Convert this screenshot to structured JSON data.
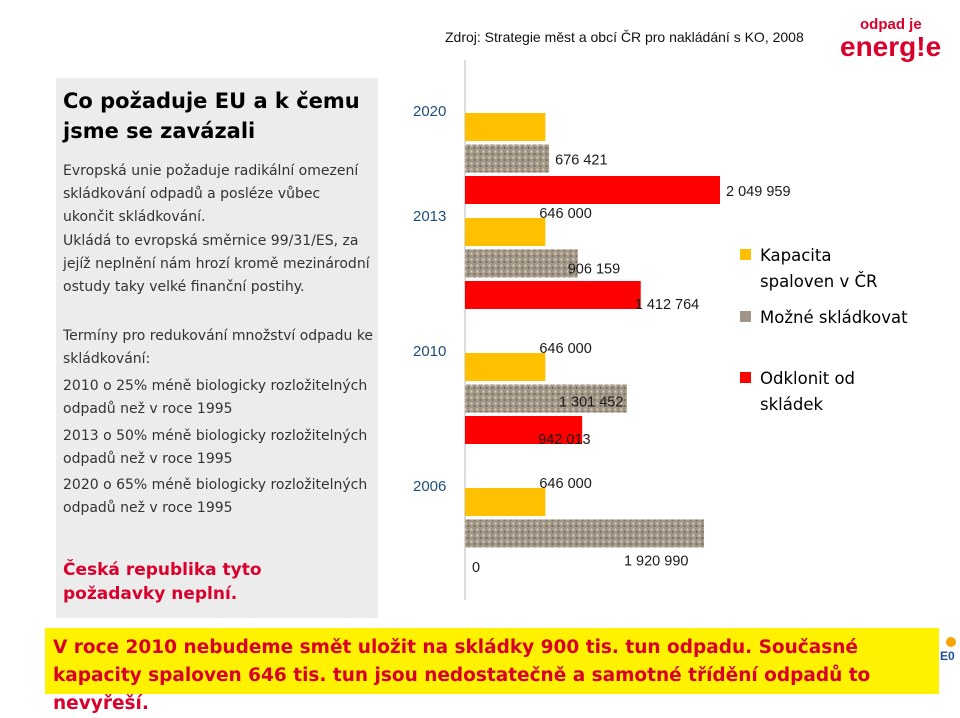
{
  "header": {
    "source": "Zdroj: Strategie měst a obcí ČR pro nakládání s KO, 2008",
    "logo_top": "odpad je",
    "logo_bottom": "energ!e"
  },
  "left": {
    "title": "Co požaduje EU a k čemu jsme se zavázali",
    "paragraphs": [
      "Evropská unie požaduje radikální omezení skládkování odpadů a posléze vůbec ukončit skládkování.",
      "Ukládá to evropská směrnice 99/31/ES, za jejíž neplnění nám hrozí kromě mezinárodní ostudy taky velké finanční postihy.",
      "Termíny pro redukování množství odpadu ke skládkování:",
      "2010 o 25% méně biologicky rozložitelných odpadů než v roce 1995",
      "2013 o 50% méně biologicky rozložitelných odpadů než v roce 1995",
      "2020 o 65% méně biologicky rozložitelných odpadů než v roce 1995"
    ],
    "conclusion": "Česká republika tyto požadavky neplní."
  },
  "chart_data": {
    "type": "bar",
    "orientation": "horizontal",
    "categories": [
      "2020",
      "2013",
      "2010",
      "2006"
    ],
    "axis_zero_label": "0",
    "series": [
      {
        "name": "Kapacita spaloven v ČR",
        "color": "#ffc000",
        "values": [
          646000,
          646000,
          646000,
          646000
        ],
        "labels": [
          "",
          "646 000",
          "646 000",
          "646 000"
        ]
      },
      {
        "name": "Možné skládkovat",
        "color": "#a09588",
        "values": [
          676421,
          906159,
          1301452,
          1920990
        ],
        "labels": [
          "676 421",
          "906 159",
          "1 301 452",
          "1 920 990"
        ]
      },
      {
        "name": "Odklonit od skládek",
        "color": "#ff0000",
        "values": [
          2049959,
          1412764,
          942013,
          0
        ],
        "labels": [
          "2 049 959",
          "1 412 764",
          "942 013",
          ""
        ]
      }
    ],
    "legend_position": "right",
    "grid": false
  },
  "legend": [
    {
      "label": "Kapacita spaloven v ČR",
      "color": "#ffc000"
    },
    {
      "label": "Možné skládkovat",
      "color": "#a09588"
    },
    {
      "label": "Odklonit od skládek",
      "color": "#ff0000"
    }
  ],
  "bottom": {
    "text": "V roce 2010 nebudeme smět uložit na skládky 900 tis. tun odpadu. Současné kapacity spaloven 646 tis. tun jsou nedostatečně a samotné třídění odpadů to nevyřeší."
  }
}
